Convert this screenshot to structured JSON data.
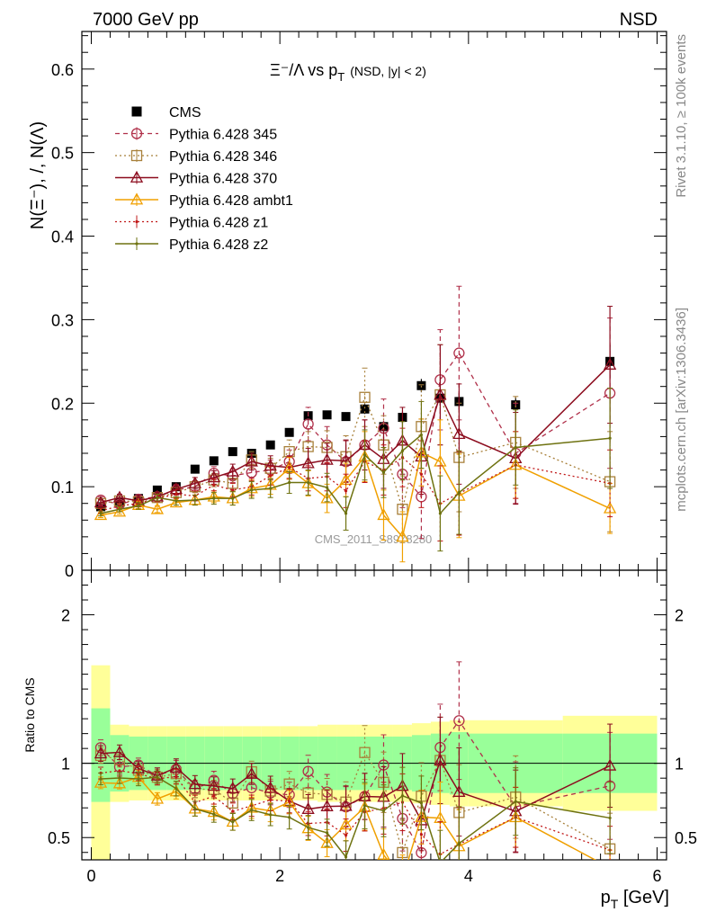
{
  "header": {
    "left": "7000 GeV pp",
    "right": "NSD"
  },
  "side_labels": {
    "rivet": "Rivet 3.1.10, ≥ 100k events",
    "mcplots": "mcplots.cern.ch [arXiv:1306.3436]"
  },
  "watermark": "CMS_2011_S8978280",
  "title": {
    "main": "Ξ⁻/Λ  vs p",
    "sub": "T",
    "note": "(NSD, |y| < 2)"
  },
  "colors": {
    "cms": "#000000",
    "p345": "#b0304a",
    "p346": "#a8803a",
    "p370": "#8c0c1e",
    "ambt1": "#f0a000",
    "z1": "#c01818",
    "z2": "#6e7210",
    "band_inner": "#99ff99",
    "band_outer": "#ffff99"
  },
  "chart_data": {
    "type": "scatter",
    "xlabel": "p_T [GeV]",
    "ylabel": "N(Ξ⁻), /, N(Λ)",
    "ratio_ylabel": "Ratio to CMS",
    "xlim": [
      -0.1,
      6.1
    ],
    "ylim": [
      0,
      0.645
    ],
    "ratio_ylim": [
      0.35,
      2.3
    ],
    "xticks": [
      "0",
      "2",
      "4",
      "6"
    ],
    "yticks": [
      "0",
      "0.1",
      "0.2",
      "0.3",
      "0.4",
      "0.5",
      "0.6"
    ],
    "ratio_yticks": [
      "0.5",
      "1",
      "2"
    ],
    "legend_position": "top-left",
    "x": [
      0.1,
      0.3,
      0.5,
      0.7,
      0.9,
      1.1,
      1.3,
      1.5,
      1.7,
      1.9,
      2.1,
      2.3,
      2.5,
      2.7,
      2.9,
      3.1,
      3.3,
      3.5,
      3.7,
      3.9,
      4.5,
      5.5
    ],
    "series": [
      {
        "name": "CMS",
        "key": "cms",
        "style": "data",
        "values": [
          0.076,
          0.081,
          0.086,
          0.096,
          0.1,
          0.121,
          0.131,
          0.142,
          0.14,
          0.15,
          0.165,
          0.185,
          0.186,
          0.184,
          0.193,
          0.172,
          0.183,
          0.221,
          0.206,
          0.202,
          0.198,
          0.25
        ],
        "errors": [
          0.002,
          0.002,
          0.002,
          0.002,
          0.002,
          0.003,
          0.003,
          0.003,
          0.003,
          0.004,
          0.004,
          0.005,
          0.005,
          0.005,
          0.006,
          0.006,
          0.007,
          0.008,
          0.009,
          0.01,
          0.01,
          0.02
        ]
      },
      {
        "name": "Pythia 6.428 345",
        "key": "p345",
        "style": "circle-dashed",
        "values": [
          0.084,
          0.079,
          0.085,
          0.088,
          0.096,
          0.1,
          0.116,
          0.113,
          0.117,
          0.12,
          0.13,
          0.175,
          0.15,
          0.13,
          0.15,
          0.17,
          0.115,
          0.088,
          0.228,
          0.26,
          0.14,
          0.212
        ],
        "errors": [
          0.004,
          0.004,
          0.004,
          0.005,
          0.006,
          0.007,
          0.008,
          0.008,
          0.01,
          0.012,
          0.014,
          0.02,
          0.022,
          0.025,
          0.03,
          0.035,
          0.04,
          0.05,
          0.06,
          0.08,
          0.06,
          0.09
        ]
      },
      {
        "name": "Pythia 6.428 346",
        "key": "p346",
        "style": "square-dotted",
        "values": [
          0.08,
          0.083,
          0.082,
          0.087,
          0.093,
          0.1,
          0.108,
          0.104,
          0.132,
          0.122,
          0.142,
          0.148,
          0.147,
          0.136,
          0.207,
          0.15,
          0.073,
          0.172,
          0.21,
          0.135,
          0.153,
          0.106
        ],
        "errors": [
          0.004,
          0.004,
          0.004,
          0.005,
          0.006,
          0.007,
          0.008,
          0.009,
          0.01,
          0.012,
          0.014,
          0.018,
          0.02,
          0.025,
          0.035,
          0.035,
          0.04,
          0.05,
          0.06,
          0.065,
          0.055,
          0.06
        ]
      },
      {
        "name": "Pythia 6.428 370",
        "key": "p370",
        "style": "triangle-solid",
        "values": [
          0.081,
          0.087,
          0.083,
          0.088,
          0.097,
          0.104,
          0.111,
          0.118,
          0.13,
          0.125,
          0.123,
          0.128,
          0.132,
          0.131,
          0.15,
          0.133,
          0.155,
          0.136,
          0.21,
          0.163,
          0.134,
          0.246
        ],
        "errors": [
          0.004,
          0.004,
          0.004,
          0.005,
          0.006,
          0.007,
          0.008,
          0.009,
          0.01,
          0.012,
          0.014,
          0.018,
          0.02,
          0.025,
          0.03,
          0.035,
          0.04,
          0.045,
          0.06,
          0.06,
          0.055,
          0.07
        ]
      },
      {
        "name": "Pythia 6.428 ambt1",
        "key": "ambt1",
        "style": "triangle-solid-light",
        "values": [
          0.066,
          0.07,
          0.078,
          0.073,
          0.081,
          0.084,
          0.088,
          0.086,
          0.098,
          0.102,
          0.122,
          0.104,
          0.086,
          0.108,
          0.136,
          0.066,
          0.04,
          0.141,
          0.13,
          0.089,
          0.126,
          0.074
        ],
        "errors": [
          0.003,
          0.003,
          0.004,
          0.004,
          0.005,
          0.006,
          0.007,
          0.008,
          0.01,
          0.011,
          0.013,
          0.015,
          0.017,
          0.02,
          0.03,
          0.03,
          0.03,
          0.04,
          0.05,
          0.05,
          0.04,
          0.03
        ]
      },
      {
        "name": "Pythia 6.428 z1",
        "key": "z1",
        "style": "dot-dotted",
        "values": [
          0.071,
          0.077,
          0.08,
          0.086,
          0.091,
          0.089,
          0.102,
          0.096,
          0.1,
          0.113,
          0.123,
          0.11,
          0.112,
          0.095,
          0.13,
          0.12,
          0.135,
          0.115,
          0.08,
          0.092,
          0.126,
          0.104
        ],
        "errors": [
          0.003,
          0.003,
          0.004,
          0.004,
          0.005,
          0.006,
          0.007,
          0.008,
          0.01,
          0.011,
          0.013,
          0.015,
          0.017,
          0.02,
          0.025,
          0.03,
          0.035,
          0.04,
          0.045,
          0.05,
          0.04,
          0.04
        ]
      },
      {
        "name": "Pythia 6.428 z2",
        "key": "z2",
        "style": "dot-solid",
        "values": [
          0.068,
          0.073,
          0.077,
          0.087,
          0.083,
          0.084,
          0.086,
          0.086,
          0.096,
          0.098,
          0.105,
          0.105,
          0.099,
          0.068,
          0.138,
          0.117,
          0.143,
          0.162,
          0.068,
          0.093,
          0.147,
          0.158
        ],
        "errors": [
          0.003,
          0.003,
          0.004,
          0.004,
          0.005,
          0.006,
          0.007,
          0.008,
          0.01,
          0.011,
          0.013,
          0.015,
          0.017,
          0.02,
          0.03,
          0.03,
          0.035,
          0.04,
          0.045,
          0.05,
          0.045,
          0.06
        ]
      }
    ],
    "ratio_bands": {
      "edges": [
        0.0,
        0.2,
        0.4,
        0.6,
        0.8,
        1.0,
        1.2,
        1.4,
        1.6,
        1.8,
        2.0,
        2.2,
        2.4,
        2.6,
        2.8,
        3.0,
        3.2,
        3.4,
        3.6,
        3.8,
        4.0,
        5.0,
        6.0
      ],
      "inner": [
        0.26,
        0.19,
        0.18,
        0.18,
        0.18,
        0.18,
        0.18,
        0.18,
        0.18,
        0.18,
        0.18,
        0.18,
        0.18,
        0.18,
        0.18,
        0.18,
        0.18,
        0.19,
        0.2,
        0.21,
        0.2,
        0.2
      ],
      "outer": [
        0.68,
        0.26,
        0.25,
        0.25,
        0.25,
        0.25,
        0.25,
        0.25,
        0.25,
        0.25,
        0.25,
        0.25,
        0.26,
        0.26,
        0.26,
        0.26,
        0.26,
        0.27,
        0.28,
        0.29,
        0.29,
        0.32
      ],
      "inner_first": [
        0.74,
        1.37
      ],
      "outer_first": [
        0.0,
        1.66
      ]
    }
  }
}
